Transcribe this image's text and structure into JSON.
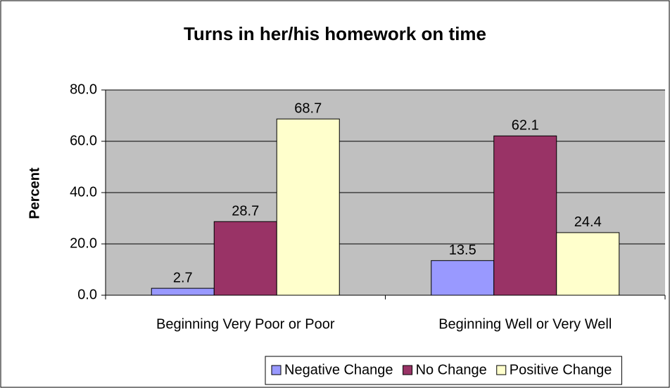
{
  "chart_data": {
    "type": "bar",
    "title": "Turns in her/his homework on time",
    "y_label": "Percent",
    "categories": [
      "Beginning Very Poor or Poor",
      "Beginning Well or Very Well"
    ],
    "series": [
      {
        "name": "Negative Change",
        "color": "#9999ff",
        "values": [
          2.7,
          13.5
        ]
      },
      {
        "name": "No Change",
        "color": "#993366",
        "values": [
          28.7,
          62.1
        ]
      },
      {
        "name": "Positive Change",
        "color": "#ffffcc",
        "values": [
          68.7,
          24.4
        ]
      }
    ],
    "ylim": [
      0,
      80
    ],
    "yticks": [
      {
        "value": 0,
        "label": "0.0"
      },
      {
        "value": 20,
        "label": "20.0"
      },
      {
        "value": 40,
        "label": "40.0"
      },
      {
        "value": 60,
        "label": "60.0"
      },
      {
        "value": 80,
        "label": "80.0"
      }
    ],
    "grid": true,
    "legend": "bottom",
    "plot_background": "#c0c0c0"
  }
}
